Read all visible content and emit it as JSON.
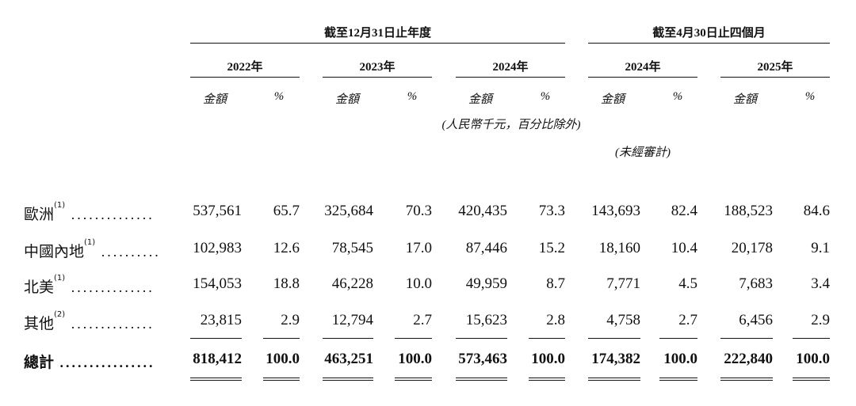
{
  "header": {
    "group1": "截至12月31日止年度",
    "group2": "截至4月30日止四個月",
    "years": [
      "2022年",
      "2023年",
      "2024年",
      "2024年",
      "2025年"
    ],
    "amount_label": "金額",
    "pct_label": "%",
    "currency_note": "(人民幣千元，百分比除外)",
    "unaudited_note": "(未經審計)"
  },
  "rows": [
    {
      "label": "歐洲",
      "sup": "(1)",
      "dots": "..............",
      "values": [
        "537,561",
        "65.7",
        "325,684",
        "70.3",
        "420,435",
        "73.3",
        "143,693",
        "82.4",
        "188,523",
        "84.6"
      ]
    },
    {
      "label": "中國內地",
      "sup": "(1)",
      "dots": "..........",
      "values": [
        "102,983",
        "12.6",
        "78,545",
        "17.0",
        "87,446",
        "15.2",
        "18,160",
        "10.4",
        "20,178",
        "9.1"
      ]
    },
    {
      "label": "北美",
      "sup": "(1)",
      "dots": "..............",
      "values": [
        "154,053",
        "18.8",
        "46,228",
        "10.0",
        "49,959",
        "8.7",
        "7,771",
        "4.5",
        "7,683",
        "3.4"
      ]
    },
    {
      "label": "其他",
      "sup": "(2)",
      "dots": "..............",
      "values": [
        "23,815",
        "2.9",
        "12,794",
        "2.7",
        "15,623",
        "2.8",
        "4,758",
        "2.7",
        "6,456",
        "2.9"
      ]
    }
  ],
  "total": {
    "label": "總計",
    "dots": "................",
    "values": [
      "818,412",
      "100.0",
      "463,251",
      "100.0",
      "573,463",
      "100.0",
      "174,382",
      "100.0",
      "222,840",
      "100.0"
    ]
  }
}
